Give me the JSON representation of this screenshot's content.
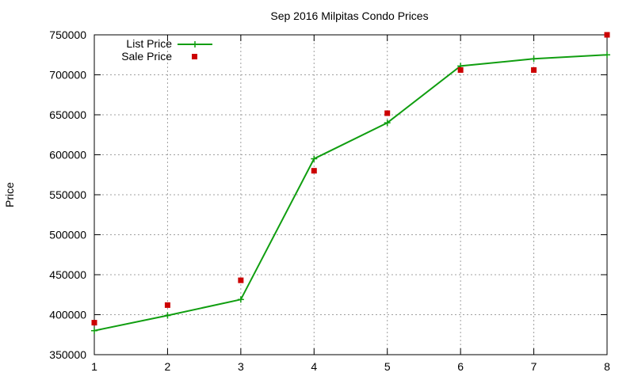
{
  "chart_data": {
    "type": "line",
    "title": "Sep 2016 Milpitas Condo Prices",
    "xlabel": "",
    "ylabel": "Price",
    "x": [
      1,
      2,
      3,
      4,
      5,
      6,
      7,
      8
    ],
    "xlim": [
      1,
      8
    ],
    "ylim": [
      350000,
      750000
    ],
    "xticks": [
      "1",
      "2",
      "3",
      "4",
      "5",
      "6",
      "7",
      "8"
    ],
    "yticks": [
      "350000",
      "400000",
      "450000",
      "500000",
      "550000",
      "600000",
      "650000",
      "700000",
      "750000"
    ],
    "grid": true,
    "legend_position": "top-left",
    "series": [
      {
        "name": "List Price",
        "style": "linespoints",
        "marker": "plus",
        "color": "#109e10",
        "values": [
          380000,
          399000,
          419000,
          595000,
          640000,
          711000,
          720000,
          725000
        ]
      },
      {
        "name": "Sale Price",
        "style": "points",
        "marker": "square",
        "color": "#cc0000",
        "values": [
          390000,
          412000,
          443000,
          580000,
          652000,
          706000,
          706000,
          750000
        ]
      }
    ]
  }
}
